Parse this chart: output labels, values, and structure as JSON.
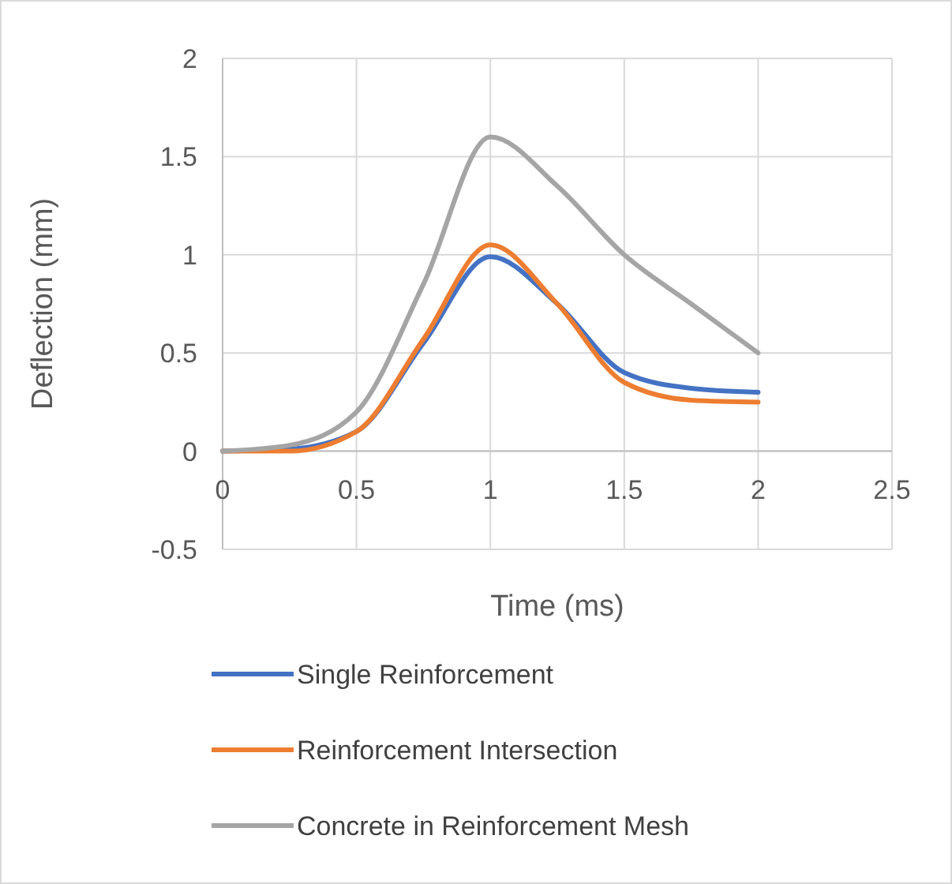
{
  "chart_data": {
    "type": "line",
    "xlabel": "Time (ms)",
    "ylabel": "Deflection (mm)",
    "x": [
      0,
      0.25,
      0.5,
      0.75,
      1,
      1.25,
      1.5,
      1.75,
      2
    ],
    "series": [
      {
        "name": "Single Reinforcement",
        "color": "#4472c4",
        "values": [
          0,
          0.01,
          0.1,
          0.55,
          0.99,
          0.75,
          0.4,
          0.32,
          0.3
        ]
      },
      {
        "name": "Reinforcement Intersection",
        "color": "#ed7d31",
        "values": [
          0,
          0,
          0.1,
          0.57,
          1.05,
          0.75,
          0.35,
          0.26,
          0.25
        ]
      },
      {
        "name": "Concrete in Reinforcement Mesh",
        "color": "#a5a5a5",
        "values": [
          0,
          0.03,
          0.2,
          0.85,
          1.6,
          1.35,
          1.0,
          0.75,
          0.5
        ]
      }
    ],
    "xlim": [
      0,
      2.5
    ],
    "xticks": [
      0,
      0.5,
      1,
      1.5,
      2,
      2.5
    ],
    "ylim": [
      -0.5,
      2
    ],
    "yticks": [
      -0.5,
      0,
      0.5,
      1,
      1.5,
      2
    ],
    "grid": true,
    "legend": "bottom",
    "marker": "none",
    "line_style": "solid"
  }
}
